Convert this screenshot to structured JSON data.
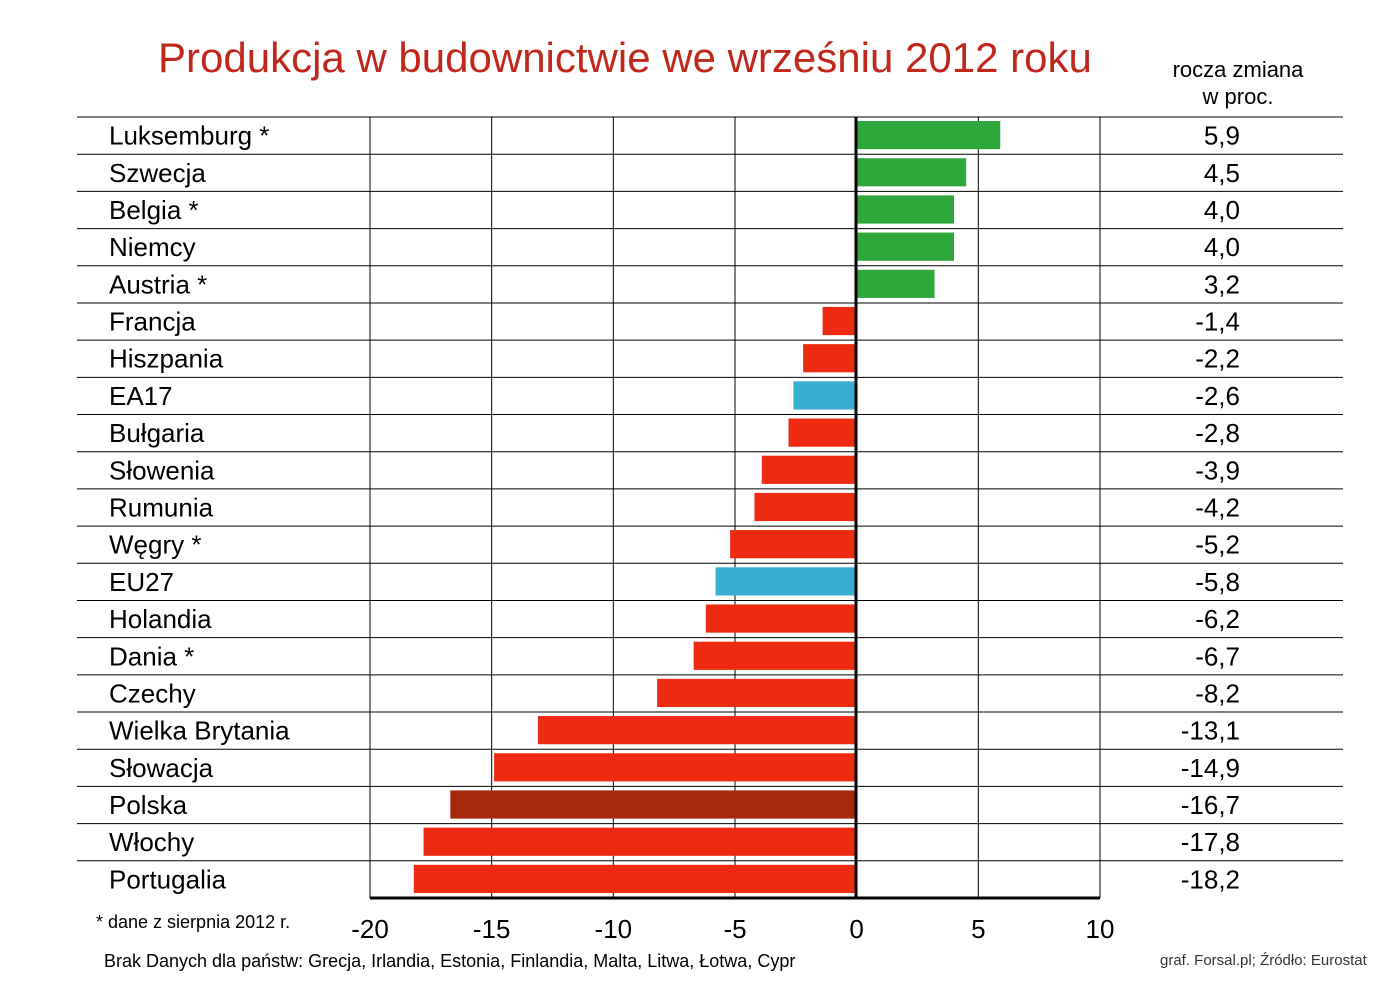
{
  "chart_data": {
    "type": "bar",
    "orientation": "horizontal",
    "title": "Produkcja w budownictwie we wrześniu 2012 roku",
    "value_header": "rocza zmiana\nw proc.",
    "value_header_lines": [
      "rocza zmiana",
      "w proc."
    ],
    "categories": [
      "Luksemburg *",
      "Szwecja",
      "Belgia *",
      "Niemcy",
      "Austria *",
      "Francja",
      "Hiszpania",
      "EA17",
      "Bułgaria",
      "Słowenia",
      "Rumunia",
      "Węgry *",
      "EU27",
      "Holandia",
      "Dania *",
      "Czechy",
      "Wielka Brytania",
      "Słowacja",
      "Polska",
      "Włochy",
      "Portugalia"
    ],
    "values": [
      5.9,
      4.5,
      4.0,
      4.0,
      3.2,
      -1.4,
      -2.2,
      -2.6,
      -2.8,
      -3.9,
      -4.2,
      -5.2,
      -5.8,
      -6.2,
      -6.7,
      -8.2,
      -13.1,
      -14.9,
      -16.7,
      -17.8,
      -18.2
    ],
    "value_labels": [
      "5,9",
      "4,5",
      "4,0",
      "4,0",
      "3,2",
      "-1,4",
      "-2,2",
      "-2,6",
      "-2,8",
      "-3,9",
      "-4,2",
      "-5,2",
      "-5,8",
      "-6,2",
      "-6,7",
      "-8,2",
      "-13,1",
      "-14,9",
      "-16,7",
      "-17,8",
      "-18,2"
    ],
    "bar_colors": [
      "#2ea83a",
      "#2ea83a",
      "#2ea83a",
      "#2ea83a",
      "#2ea83a",
      "#ec2b12",
      "#ec2b12",
      "#37aed0",
      "#ec2b12",
      "#ec2b12",
      "#ec2b12",
      "#ec2b12",
      "#37aed0",
      "#ec2b12",
      "#ec2b12",
      "#ec2b12",
      "#ec2b12",
      "#ec2b12",
      "#a8280f",
      "#ec2b12",
      "#ec2b12"
    ],
    "xlim": [
      -20,
      10
    ],
    "xticks": [
      -20,
      -15,
      -10,
      -5,
      0,
      5,
      10
    ],
    "xtick_labels": [
      "-20",
      "-15",
      "-10",
      "-5",
      "0",
      "5",
      "10"
    ],
    "grid": true
  },
  "footnote": "* dane z sierpnia 2012 r.",
  "no_data_note": "Brak Danych dla państw: Grecja, Irlandia, Estonia, Finlandia, Malta, Litwa, Łotwa, Cypr",
  "source": "graf. Forsal.pl; Źródło: Eurostat",
  "colors": {
    "positive": "#2ea83a",
    "negative": "#ec2b12",
    "aggregate": "#37aed0",
    "highlight": "#a8280f",
    "title": "#c0281c"
  }
}
